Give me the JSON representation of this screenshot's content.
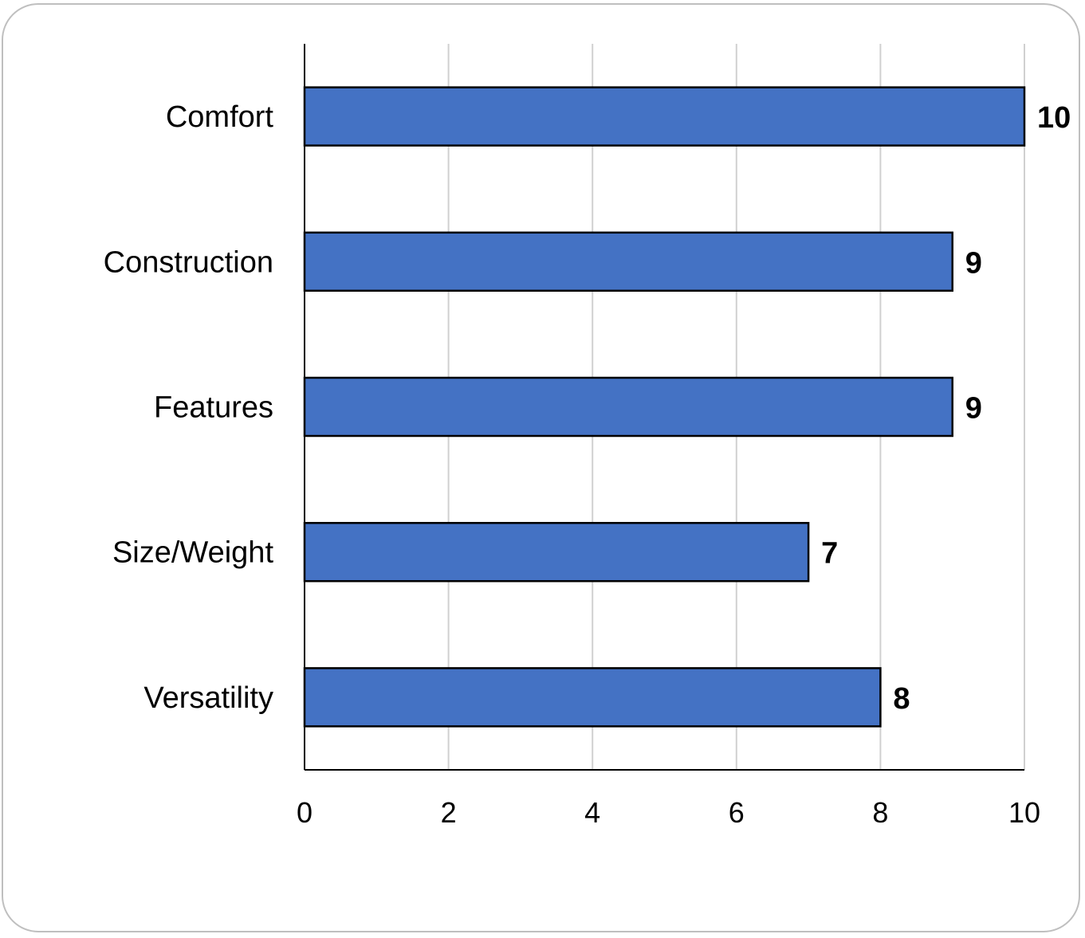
{
  "chart_data": {
    "type": "bar",
    "orientation": "horizontal",
    "categories": [
      "Comfort",
      "Construction",
      "Features",
      "Size/Weight",
      "Versatility"
    ],
    "values": [
      10,
      9,
      9,
      7,
      8
    ],
    "title": "",
    "xlabel": "",
    "ylabel": "",
    "xlim": [
      0,
      10
    ],
    "xticks": [
      0,
      2,
      4,
      6,
      8,
      10
    ],
    "grid": "vertical",
    "legend": "none",
    "data_labels": true,
    "colors": {
      "bar": "#4472c4",
      "bar_border": "#000000",
      "grid": "#d0d0d0"
    }
  }
}
